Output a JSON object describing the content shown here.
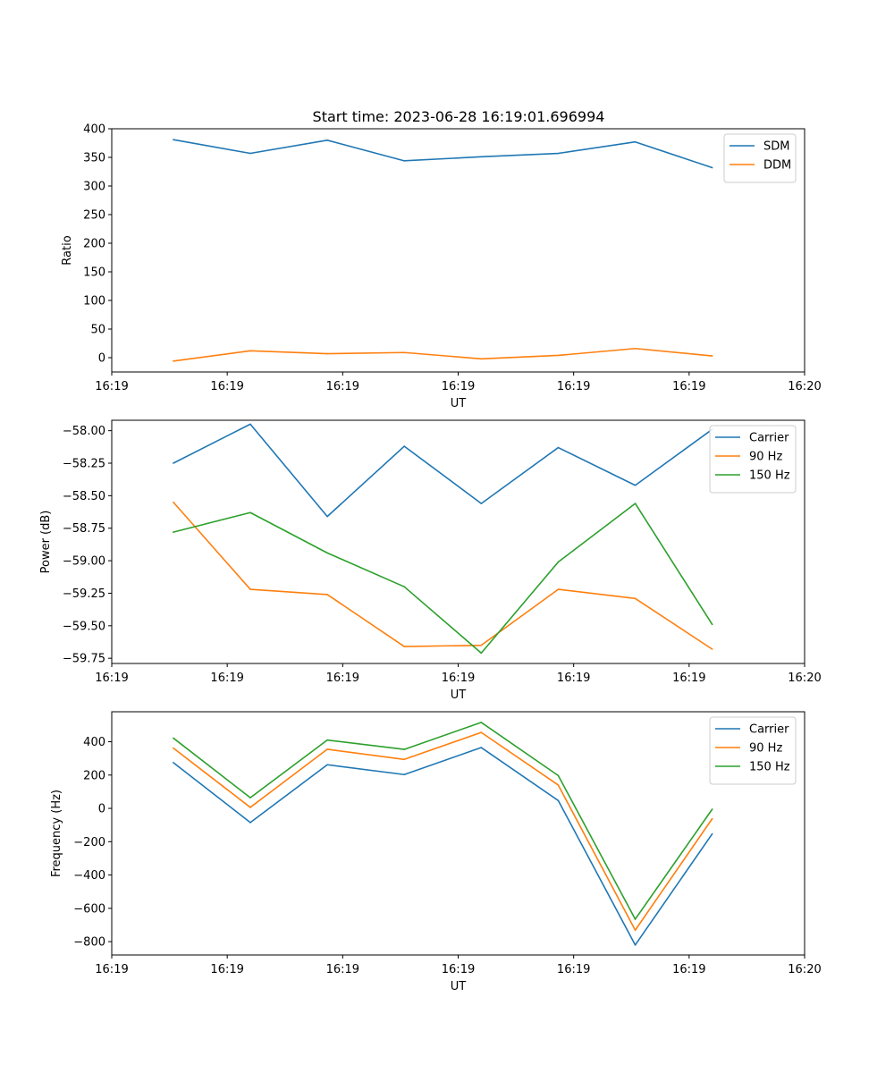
{
  "figure": {
    "title": "Start time: 2023-06-28 16:19:01.696994"
  },
  "chart_data": [
    {
      "type": "line",
      "title": "Start time: 2023-06-28 16:19:01.696994",
      "xlabel": "UT",
      "ylabel": "Ratio",
      "x": [
        1,
        2,
        3,
        4,
        5,
        6,
        7,
        8
      ],
      "xlim": [
        0.2,
        9.2
      ],
      "xticks": [
        0.2,
        1.7,
        3.2,
        4.7,
        6.2,
        7.7,
        9.2
      ],
      "xtick_labels": [
        "16:19",
        "16:19",
        "16:19",
        "16:19",
        "16:19",
        "16:19",
        "16:20"
      ],
      "ylim": [
        -25,
        400
      ],
      "yticks": [
        0,
        50,
        100,
        150,
        200,
        250,
        300,
        350,
        400
      ],
      "ytick_labels": [
        "0",
        "50",
        "100",
        "150",
        "200",
        "250",
        "300",
        "350",
        "400"
      ],
      "grid": false,
      "legend": "top-right",
      "series": [
        {
          "name": "SDM",
          "color": "#1f77b4",
          "values": [
            381,
            357,
            380,
            344,
            351,
            357,
            377,
            332
          ]
        },
        {
          "name": "DDM",
          "color": "#ff7f0e",
          "values": [
            -6,
            12,
            7,
            9,
            -2,
            4,
            16,
            3
          ]
        }
      ]
    },
    {
      "type": "line",
      "xlabel": "UT",
      "ylabel": "Power (dB)",
      "x": [
        1,
        2,
        3,
        4,
        5,
        6,
        7,
        8
      ],
      "xlim": [
        0.2,
        9.2
      ],
      "xticks": [
        0.2,
        1.7,
        3.2,
        4.7,
        6.2,
        7.7,
        9.2
      ],
      "xtick_labels": [
        "16:19",
        "16:19",
        "16:19",
        "16:19",
        "16:19",
        "16:19",
        "16:20"
      ],
      "ylim": [
        -59.79,
        -57.92
      ],
      "yticks": [
        -59.75,
        -59.5,
        -59.25,
        -59.0,
        -58.75,
        -58.5,
        -58.25,
        -58.0
      ],
      "ytick_labels": [
        "−59.75",
        "−59.50",
        "−59.25",
        "−59.00",
        "−58.75",
        "−58.50",
        "−58.25",
        "−58.00"
      ],
      "grid": false,
      "legend": "top-right",
      "series": [
        {
          "name": "Carrier",
          "color": "#1f77b4",
          "values": [
            -58.25,
            -57.95,
            -58.66,
            -58.12,
            -58.56,
            -58.13,
            -58.42,
            -57.99
          ]
        },
        {
          "name": "90 Hz",
          "color": "#ff7f0e",
          "values": [
            -58.55,
            -59.22,
            -59.26,
            -59.66,
            -59.65,
            -59.22,
            -59.29,
            -59.68
          ]
        },
        {
          "name": "150 Hz",
          "color": "#2ca02c",
          "values": [
            -58.78,
            -58.63,
            -58.94,
            -59.2,
            -59.71,
            -59.01,
            -58.56,
            -59.49
          ]
        }
      ]
    },
    {
      "type": "line",
      "xlabel": "UT",
      "ylabel": "Frequency (Hz)",
      "x": [
        1,
        2,
        3,
        4,
        5,
        6,
        7,
        8
      ],
      "xlim": [
        0.2,
        9.2
      ],
      "xticks": [
        0.2,
        1.7,
        3.2,
        4.7,
        6.2,
        7.7,
        9.2
      ],
      "xtick_labels": [
        "16:19",
        "16:19",
        "16:19",
        "16:19",
        "16:19",
        "16:19",
        "16:20"
      ],
      "ylim": [
        -880,
        580
      ],
      "yticks": [
        -800,
        -600,
        -400,
        -200,
        0,
        200,
        400
      ],
      "ytick_labels": [
        "−800",
        "−600",
        "−400",
        "−200",
        "0",
        "200",
        "400"
      ],
      "grid": false,
      "legend": "top-right",
      "series": [
        {
          "name": "Carrier",
          "color": "#1f77b4",
          "values": [
            275,
            -85,
            262,
            203,
            365,
            47,
            -820,
            -153
          ]
        },
        {
          "name": "90 Hz",
          "color": "#ff7f0e",
          "values": [
            362,
            6,
            355,
            294,
            456,
            140,
            -731,
            -62
          ]
        },
        {
          "name": "150 Hz",
          "color": "#2ca02c",
          "values": [
            422,
            64,
            410,
            354,
            516,
            197,
            -665,
            -5
          ]
        }
      ]
    }
  ]
}
